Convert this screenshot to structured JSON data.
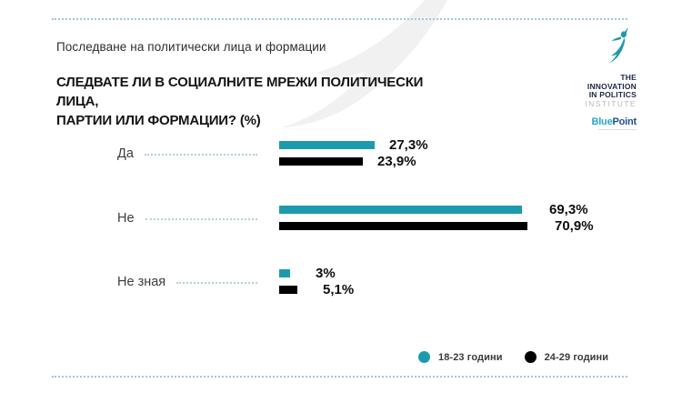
{
  "page": {
    "kicker": "Последване на политически лица и формации",
    "question_line1": "СЛЕДВАТЕ ЛИ В СОЦИАЛНИТЕ МРЕЖИ ПОЛИТИЧЕСКИ ЛИЦА,",
    "question_line2": "ПАРТИИ ИЛИ ФОРМАЦИИ? (%)"
  },
  "logo": {
    "institute_lines": [
      "THE",
      "INNOVATION",
      "IN POLITICS",
      "INSTITUTE"
    ],
    "bluepoint": {
      "blue": "Blue",
      "point": "Point"
    }
  },
  "chart_data": {
    "type": "bar",
    "orientation": "horizontal",
    "title": "СЛЕДВАТЕ ЛИ В СОЦИАЛНИТЕ МРЕЖИ ПОЛИТИЧЕСКИ ЛИЦА, ПАРТИИ ИЛИ ФОРМАЦИИ? (%)",
    "subtitle": "Последване на политически лица и формации",
    "categories": [
      "Да",
      "Не",
      "Не зная"
    ],
    "series": [
      {
        "name": "18-23 години",
        "color": "#1e9aae",
        "values": [
          27.3,
          69.3,
          3
        ]
      },
      {
        "name": "24-29 години",
        "color": "#000000",
        "values": [
          23.9,
          70.9,
          5.1
        ]
      }
    ],
    "value_labels": [
      [
        "27,3%",
        "23,9%"
      ],
      [
        "69,3%",
        "70,9%"
      ],
      [
        "3%",
        "5,1%"
      ]
    ],
    "xlim": [
      0,
      100
    ],
    "grid": false,
    "legend_position": "bottom-right"
  },
  "colors": {
    "accent_teal": "#1e9aae",
    "bar_black": "#000000",
    "dotted_rule": "#9ccad4",
    "leader_dots": "#b4d2d8",
    "watermark_gray": "#f1f1f1",
    "text_dark": "#141414"
  }
}
